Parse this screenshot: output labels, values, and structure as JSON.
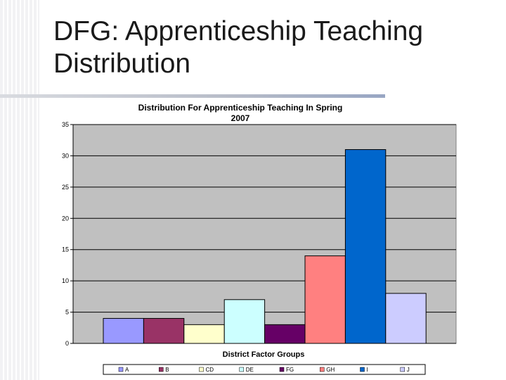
{
  "slide": {
    "title": "DFG: Apprenticeship Teaching Distribution"
  },
  "chart_data": {
    "type": "bar",
    "title": "Distribution For Apprenticeship Teaching In Spring 2007",
    "title_lines": [
      "Distribution For Apprenticeship Teaching In Spring",
      "2007"
    ],
    "xlabel": "District Factor Groups",
    "ylabel": "",
    "ylim": [
      0,
      35
    ],
    "yticks": [
      0,
      5,
      10,
      15,
      20,
      25,
      30,
      35
    ],
    "grid": true,
    "legend_position": "bottom",
    "series": [
      {
        "name": "A",
        "value": 4,
        "color": "#9999ff"
      },
      {
        "name": "B",
        "value": 4,
        "color": "#993366"
      },
      {
        "name": "CD",
        "value": 3,
        "color": "#ffffcc"
      },
      {
        "name": "DE",
        "value": 7,
        "color": "#ccffff"
      },
      {
        "name": "FG",
        "value": 3,
        "color": "#660066"
      },
      {
        "name": "GH",
        "value": 14,
        "color": "#ff8080"
      },
      {
        "name": "I",
        "value": 31,
        "color": "#0066cc"
      },
      {
        "name": "J",
        "value": 8,
        "color": "#ccccff"
      }
    ],
    "plot_background": "#c0c0c0"
  }
}
